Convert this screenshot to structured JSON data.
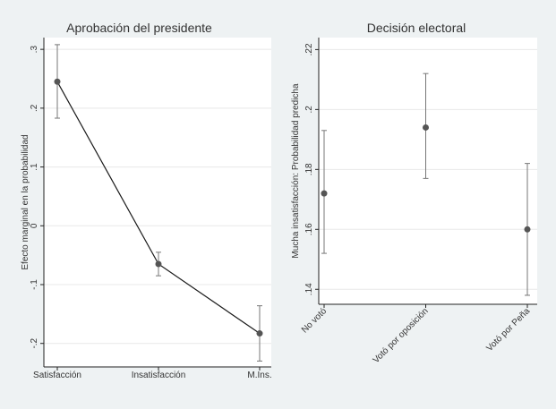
{
  "chart_data": [
    {
      "type": "line",
      "title": "Aprobación del presidente",
      "xlabel": "",
      "ylabel": "Efecto marginal en la probabilidad",
      "categories": [
        "Satisfacción",
        "Insatisfacción",
        "M.Ins."
      ],
      "values": [
        0.245,
        -0.065,
        -0.183
      ],
      "ci_low": [
        0.183,
        -0.085,
        -0.23
      ],
      "ci_high": [
        0.308,
        -0.045,
        -0.136
      ],
      "yticks": [
        0.3,
        0.2,
        0.1,
        0,
        -0.1,
        -0.2
      ],
      "ytick_labels": [
        ".3",
        ".2",
        ".1",
        "0",
        "-.1",
        "-.2"
      ],
      "ylim": [
        -0.24,
        0.32
      ],
      "grid": true,
      "connect": true
    },
    {
      "type": "scatter",
      "title": "Decisión electoral",
      "xlabel": "",
      "ylabel": "Mucha insatisfacción: Probabilidad predicha",
      "categories": [
        "No votó",
        "Votó por oposición",
        "Votó por Peña"
      ],
      "values": [
        0.172,
        0.194,
        0.16
      ],
      "ci_low": [
        0.152,
        0.177,
        0.138
      ],
      "ci_high": [
        0.193,
        0.212,
        0.182
      ],
      "yticks": [
        0.22,
        0.2,
        0.18,
        0.16,
        0.14
      ],
      "ytick_labels": [
        ".22",
        ".2",
        ".18",
        ".16",
        ".14"
      ],
      "ylim": [
        0.135,
        0.224
      ],
      "grid": true,
      "connect": false
    }
  ],
  "colors": {
    "background": "#eef2f3",
    "plot": "#ffffff",
    "frame": "#222222",
    "grid": "#e8e8e8",
    "line": "#1a1a1a",
    "marker": "#555555",
    "ci": "#777777"
  }
}
